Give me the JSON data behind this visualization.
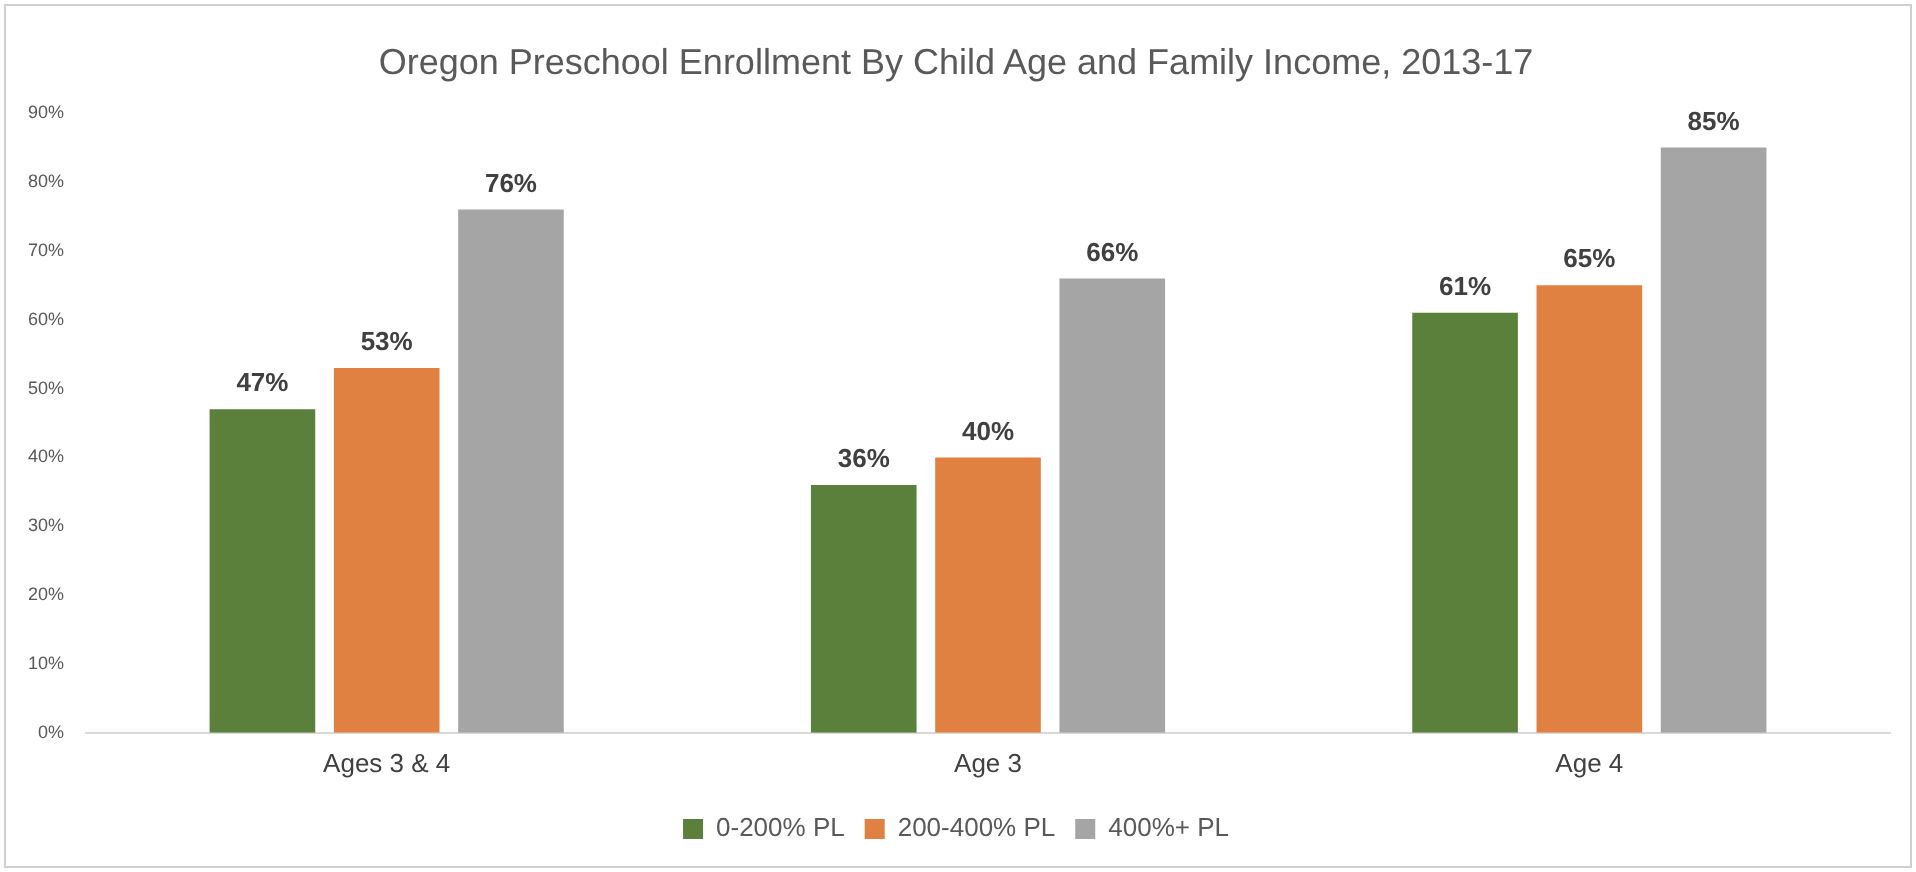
{
  "chart_data": {
    "type": "bar",
    "title": "Oregon Preschool Enrollment By Child Age and Family Income, 2013-17",
    "categories": [
      "Ages 3 & 4",
      "Age 3",
      "Age 4"
    ],
    "series": [
      {
        "name": "0-200% PL",
        "color": "#5b803c",
        "values": [
          47,
          36,
          61
        ],
        "value_labels": [
          "47%",
          "36%",
          "61%"
        ]
      },
      {
        "name": "200-400% PL",
        "color": "#e08142",
        "values": [
          53,
          40,
          65
        ],
        "value_labels": [
          "53%",
          "40%",
          "65%"
        ]
      },
      {
        "name": "400%+ PL",
        "color": "#a5a5a5",
        "values": [
          76,
          66,
          85
        ],
        "value_labels": [
          "76%",
          "66%",
          "85%"
        ]
      }
    ],
    "ylim": [
      0,
      90
    ],
    "yticks": [
      {
        "value": 0,
        "label": "0%"
      },
      {
        "value": 10,
        "label": "10%"
      },
      {
        "value": 20,
        "label": "20%"
      },
      {
        "value": 30,
        "label": "30%"
      },
      {
        "value": 40,
        "label": "40%"
      },
      {
        "value": 50,
        "label": "50%"
      },
      {
        "value": 60,
        "label": "60%"
      },
      {
        "value": 70,
        "label": "70%"
      },
      {
        "value": 80,
        "label": "80%"
      },
      {
        "value": 90,
        "label": "90%"
      }
    ],
    "grid": false,
    "legend": "bottom"
  }
}
